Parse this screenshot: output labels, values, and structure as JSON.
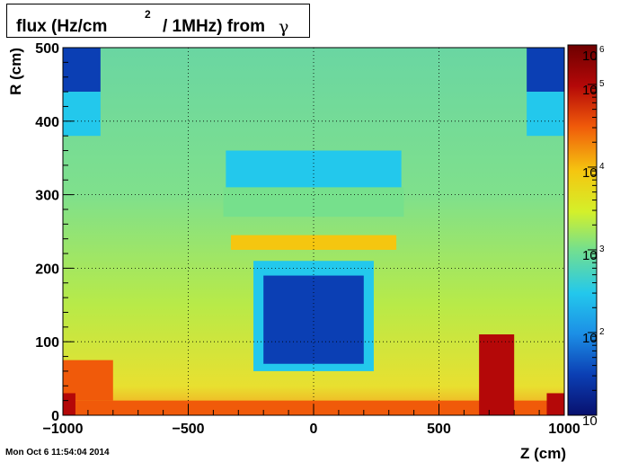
{
  "chart_data": {
    "type": "heatmap",
    "title": {
      "main": "flux (Hz/cm",
      "sup": "2",
      "rest": "/ 1MHz) from",
      "symbol": "γ"
    },
    "xlabel": "Z (cm)",
    "ylabel": "R (cm)",
    "xlim": [
      -1000,
      1000
    ],
    "ylim": [
      0,
      500
    ],
    "x_ticks": [
      "−1000",
      "−500",
      "0",
      "500",
      "1000"
    ],
    "x_tick_values": [
      -1000,
      -500,
      0,
      500,
      1000
    ],
    "y_ticks": [
      "0",
      "100",
      "200",
      "300",
      "400",
      "500"
    ],
    "y_tick_values": [
      0,
      100,
      200,
      300,
      400,
      500
    ],
    "grid": true,
    "colorscale": {
      "log": true,
      "range": [
        10,
        300000
      ],
      "labels": [
        {
          "base": "10",
          "exp": "",
          "value": 10
        },
        {
          "base": "10",
          "exp": "2",
          "value": 100
        },
        {
          "base": "10",
          "exp": "3",
          "value": 1000
        },
        {
          "base": "10",
          "exp": "4",
          "value": 10000
        },
        {
          "base": "10",
          "exp": "5",
          "value": 100000
        },
        {
          "base": "10",
          "exp": "6",
          "value": 1000000
        }
      ],
      "colors": [
        "#08106e",
        "#0b3fb4",
        "#1c8fe6",
        "#23c8ec",
        "#76e08c",
        "#d4f02a",
        "#f5c610",
        "#f05a0a",
        "#b40808",
        "#6e0000"
      ]
    },
    "background_flux": 3000,
    "regions": [
      {
        "z": [
          -1000,
          -850
        ],
        "r": [
          440,
          500
        ],
        "flux": 40
      },
      {
        "z": [
          850,
          1000
        ],
        "r": [
          440,
          500
        ],
        "flux": 40
      },
      {
        "z": [
          -1000,
          -850
        ],
        "r": [
          380,
          440
        ],
        "flux": 400
      },
      {
        "z": [
          850,
          1000
        ],
        "r": [
          380,
          440
        ],
        "flux": 400
      },
      {
        "z": [
          -350,
          350
        ],
        "r": [
          310,
          360
        ],
        "flux": 300
      },
      {
        "z": [
          -360,
          360
        ],
        "r": [
          270,
          310
        ],
        "flux": 600
      },
      {
        "z": [
          -330,
          330
        ],
        "r": [
          225,
          245
        ],
        "flux": 15000
      },
      {
        "z": [
          -240,
          240
        ],
        "r": [
          60,
          210
        ],
        "flux": 500
      },
      {
        "z": [
          -200,
          200
        ],
        "r": [
          70,
          190
        ],
        "flux": 30
      },
      {
        "z": [
          -1000,
          1000
        ],
        "r": [
          0,
          20
        ],
        "flux": 40000
      },
      {
        "z": [
          -1000,
          -800
        ],
        "r": [
          20,
          75
        ],
        "flux": 25000
      },
      {
        "z": [
          660,
          800
        ],
        "r": [
          0,
          110
        ],
        "flux": 150000
      },
      {
        "z": [
          930,
          1000
        ],
        "r": [
          0,
          30
        ],
        "flux": 150000
      },
      {
        "z": [
          -1000,
          -950
        ],
        "r": [
          0,
          30
        ],
        "flux": 150000
      }
    ]
  },
  "timestamp": "Mon Oct  6 11:54:04 2014"
}
